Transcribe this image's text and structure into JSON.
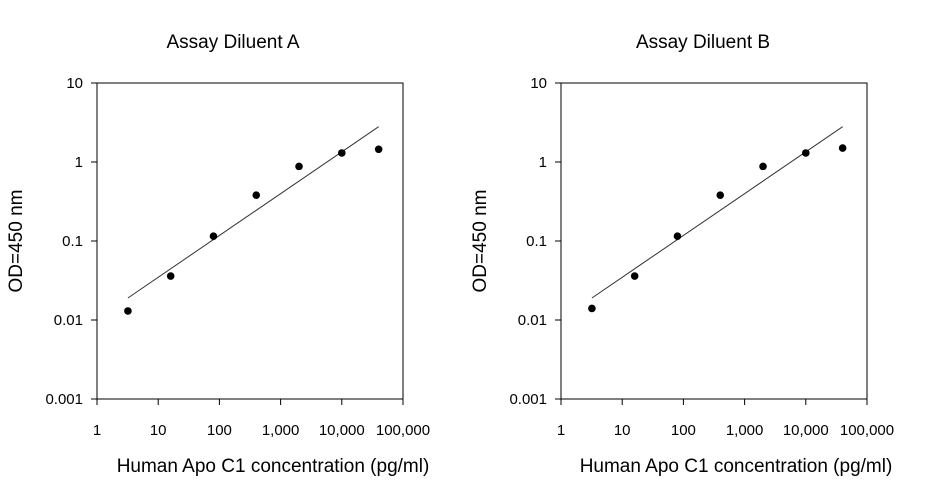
{
  "chart_data": [
    {
      "type": "scatter",
      "title": "Assay Diluent A",
      "xlabel": "Human Apo C1 concentration (pg/ml)",
      "ylabel": "OD=450 nm",
      "x_scale": "log",
      "y_scale": "log",
      "xlim": [
        1,
        100000
      ],
      "ylim": [
        0.001,
        10
      ],
      "x_ticks": [
        1,
        10,
        100,
        1000,
        10000,
        100000
      ],
      "x_tick_labels": [
        "1",
        "10",
        "100",
        "1,000",
        "10,000",
        "100,000"
      ],
      "y_ticks": [
        0.001,
        0.01,
        0.1,
        1,
        10
      ],
      "y_tick_labels": [
        "0.001",
        "0.01",
        "0.1",
        "1",
        "10"
      ],
      "grid": false,
      "points": [
        {
          "x": 3.2,
          "y": 0.013
        },
        {
          "x": 16,
          "y": 0.036
        },
        {
          "x": 80,
          "y": 0.115
        },
        {
          "x": 400,
          "y": 0.38
        },
        {
          "x": 2000,
          "y": 0.88
        },
        {
          "x": 10000,
          "y": 1.3
        },
        {
          "x": 40000,
          "y": 1.45
        }
      ],
      "fit_line": [
        {
          "x": 3.2,
          "y": 0.019
        },
        {
          "x": 40000,
          "y": 2.8
        }
      ]
    },
    {
      "type": "scatter",
      "title": "Assay Diluent B",
      "xlabel": "Human Apo C1 concentration (pg/ml)",
      "ylabel": "OD=450 nm",
      "x_scale": "log",
      "y_scale": "log",
      "xlim": [
        1,
        100000
      ],
      "ylim": [
        0.001,
        10
      ],
      "x_ticks": [
        1,
        10,
        100,
        1000,
        10000,
        100000
      ],
      "x_tick_labels": [
        "1",
        "10",
        "100",
        "1,000",
        "10,000",
        "100,000"
      ],
      "y_ticks": [
        0.001,
        0.01,
        0.1,
        1,
        10
      ],
      "y_tick_labels": [
        "0.001",
        "0.01",
        "0.1",
        "1",
        "10"
      ],
      "grid": false,
      "points": [
        {
          "x": 3.2,
          "y": 0.014
        },
        {
          "x": 16,
          "y": 0.036
        },
        {
          "x": 80,
          "y": 0.115
        },
        {
          "x": 400,
          "y": 0.38
        },
        {
          "x": 2000,
          "y": 0.88
        },
        {
          "x": 10000,
          "y": 1.3
        },
        {
          "x": 40000,
          "y": 1.5
        }
      ],
      "fit_line": [
        {
          "x": 3.2,
          "y": 0.019
        },
        {
          "x": 40000,
          "y": 2.8
        }
      ]
    }
  ]
}
